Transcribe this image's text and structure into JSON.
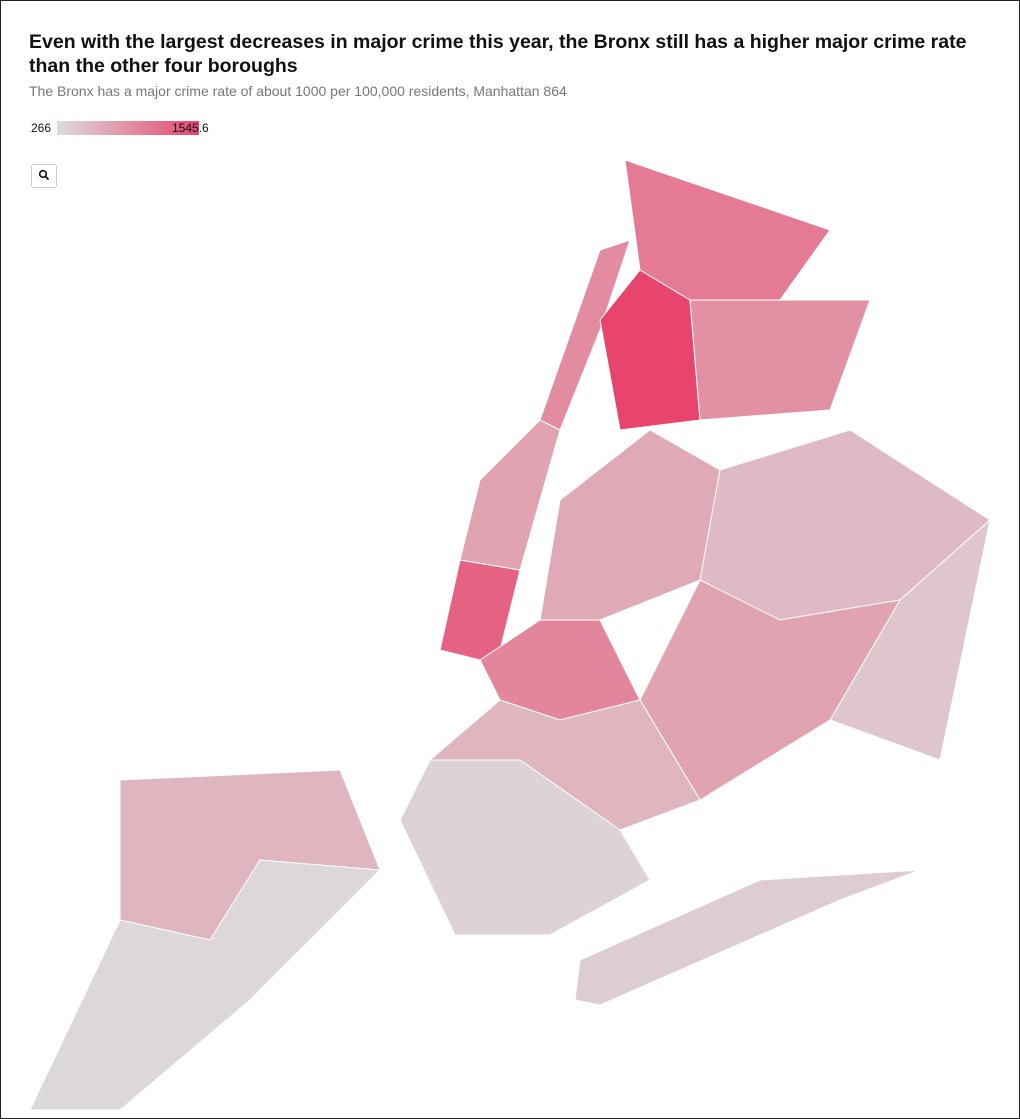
{
  "chart_data": {
    "type": "choropleth",
    "title": "Even with the largest decreases in major crime this year, the Bronx still has a higher major crime rate than the other four boroughs",
    "subtitle": "The Bronx has a major crime rate of about 1000 per 100,000 residents, Manhattan 864",
    "range": [
      266,
      1545.6
    ],
    "colors": [
      "#dcdcdc",
      "#e8456e"
    ],
    "values": [
      600,
      300,
      1300,
      750,
      950,
      1545.6,
      1100,
      900,
      700,
      550,
      450,
      750,
      400,
      1000,
      600,
      350
    ]
  }
}
